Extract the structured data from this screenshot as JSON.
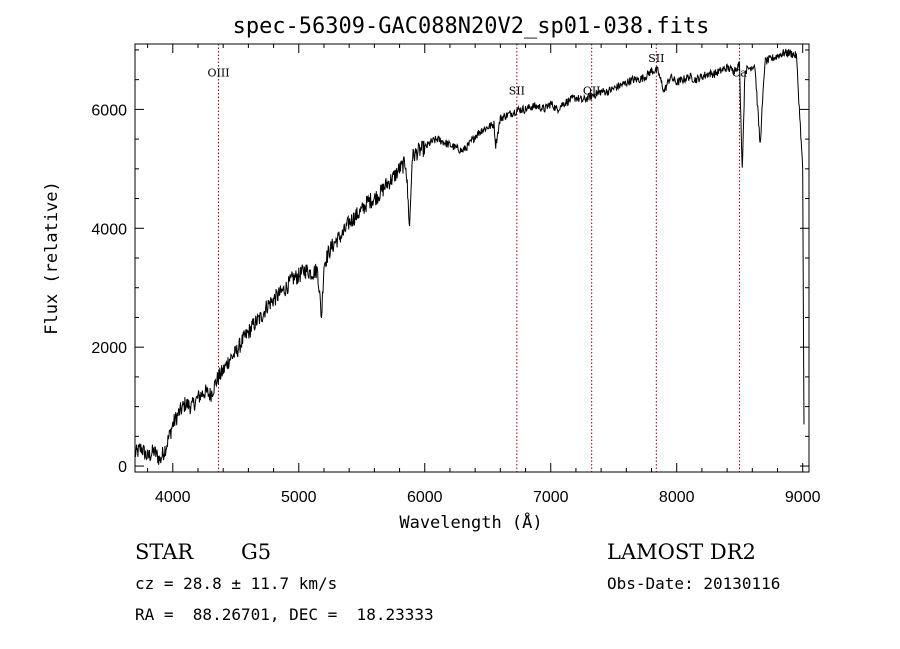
{
  "chart_data": {
    "type": "line",
    "title": "spec-56309-GAC088N20V2_sp01-038.fits",
    "xlabel": "Wavelength (Å)",
    "ylabel": "Flux (relative)",
    "xlim": [
      3700,
      9050
    ],
    "ylim": [
      -100,
      7100
    ],
    "xticks": [
      4000,
      5000,
      6000,
      7000,
      8000,
      9000
    ],
    "xtick_labels": [
      "4000",
      "5000",
      "6000",
      "7000",
      "8000",
      "9000"
    ],
    "yticks": [
      0,
      2000,
      4000,
      6000
    ],
    "ytick_labels": [
      "0",
      "2000",
      "4000",
      "6000"
    ],
    "grid": false,
    "series": [
      {
        "name": "spectrum",
        "color": "#000000",
        "x": [
          3700,
          3750,
          3800,
          3850,
          3900,
          3950,
          4000,
          4050,
          4100,
          4150,
          4200,
          4250,
          4300,
          4350,
          4400,
          4450,
          4500,
          4550,
          4600,
          4650,
          4700,
          4750,
          4800,
          4850,
          4900,
          4950,
          5000,
          5050,
          5100,
          5150,
          5180,
          5200,
          5250,
          5300,
          5350,
          5400,
          5450,
          5500,
          5550,
          5600,
          5650,
          5700,
          5750,
          5800,
          5850,
          5880,
          5900,
          5950,
          6000,
          6050,
          6100,
          6150,
          6200,
          6250,
          6300,
          6350,
          6400,
          6450,
          6500,
          6550,
          6563,
          6600,
          6650,
          6700,
          6750,
          6800,
          6850,
          6900,
          6950,
          7000,
          7050,
          7100,
          7150,
          7200,
          7250,
          7300,
          7350,
          7400,
          7450,
          7500,
          7550,
          7600,
          7650,
          7700,
          7750,
          7800,
          7850,
          7900,
          7950,
          8000,
          8050,
          8100,
          8150,
          8200,
          8250,
          8300,
          8350,
          8400,
          8450,
          8498,
          8520,
          8542,
          8580,
          8620,
          8662,
          8700,
          8750,
          8800,
          8850,
          8900,
          8950,
          9000,
          9010
        ],
        "y": [
          200,
          300,
          150,
          250,
          100,
          350,
          700,
          900,
          1050,
          1000,
          1150,
          1250,
          1200,
          1450,
          1600,
          1800,
          1900,
          2100,
          2250,
          2400,
          2500,
          2700,
          2800,
          2900,
          3000,
          3150,
          3200,
          3300,
          3250,
          3300,
          2500,
          3400,
          3650,
          3800,
          3900,
          4100,
          4200,
          4300,
          4450,
          4500,
          4600,
          4750,
          4850,
          5000,
          5100,
          4000,
          5200,
          5300,
          5350,
          5450,
          5500,
          5450,
          5400,
          5350,
          5300,
          5400,
          5550,
          5650,
          5700,
          5750,
          5400,
          5850,
          5900,
          5950,
          6000,
          6000,
          6050,
          6050,
          6000,
          6100,
          6000,
          6100,
          6150,
          6200,
          6150,
          6200,
          6250,
          6300,
          6300,
          6350,
          6400,
          6450,
          6500,
          6500,
          6550,
          6650,
          6650,
          6300,
          6550,
          6450,
          6500,
          6550,
          6500,
          6550,
          6600,
          6600,
          6650,
          6700,
          6650,
          6750,
          5000,
          6650,
          6700,
          6750,
          5400,
          6800,
          6850,
          6900,
          6950,
          6950,
          6900,
          5000,
          700
        ]
      }
    ],
    "annotations": [
      {
        "label": "OIII",
        "x": 4363,
        "label_y": 6550
      },
      {
        "label": "SII",
        "x": 6731,
        "label_y": 6250
      },
      {
        "label": "OII",
        "x": 7325,
        "label_y": 6250
      },
      {
        "label": "SII",
        "x": 7838,
        "label_y": 6800
      },
      {
        "label": "Ca",
        "x": 8498,
        "label_y": 6550
      }
    ],
    "line_marker_color": "#990000"
  },
  "info": {
    "class_label": "STAR",
    "subclass_label": "G5",
    "release_label": "LAMOST DR2",
    "redshift_text": "cz = 28.8 ± 11.7 km/s",
    "obs_date_text": "Obs-Date: 20130116",
    "coords_text": "RA =  88.26701, DEC =  18.23333"
  }
}
